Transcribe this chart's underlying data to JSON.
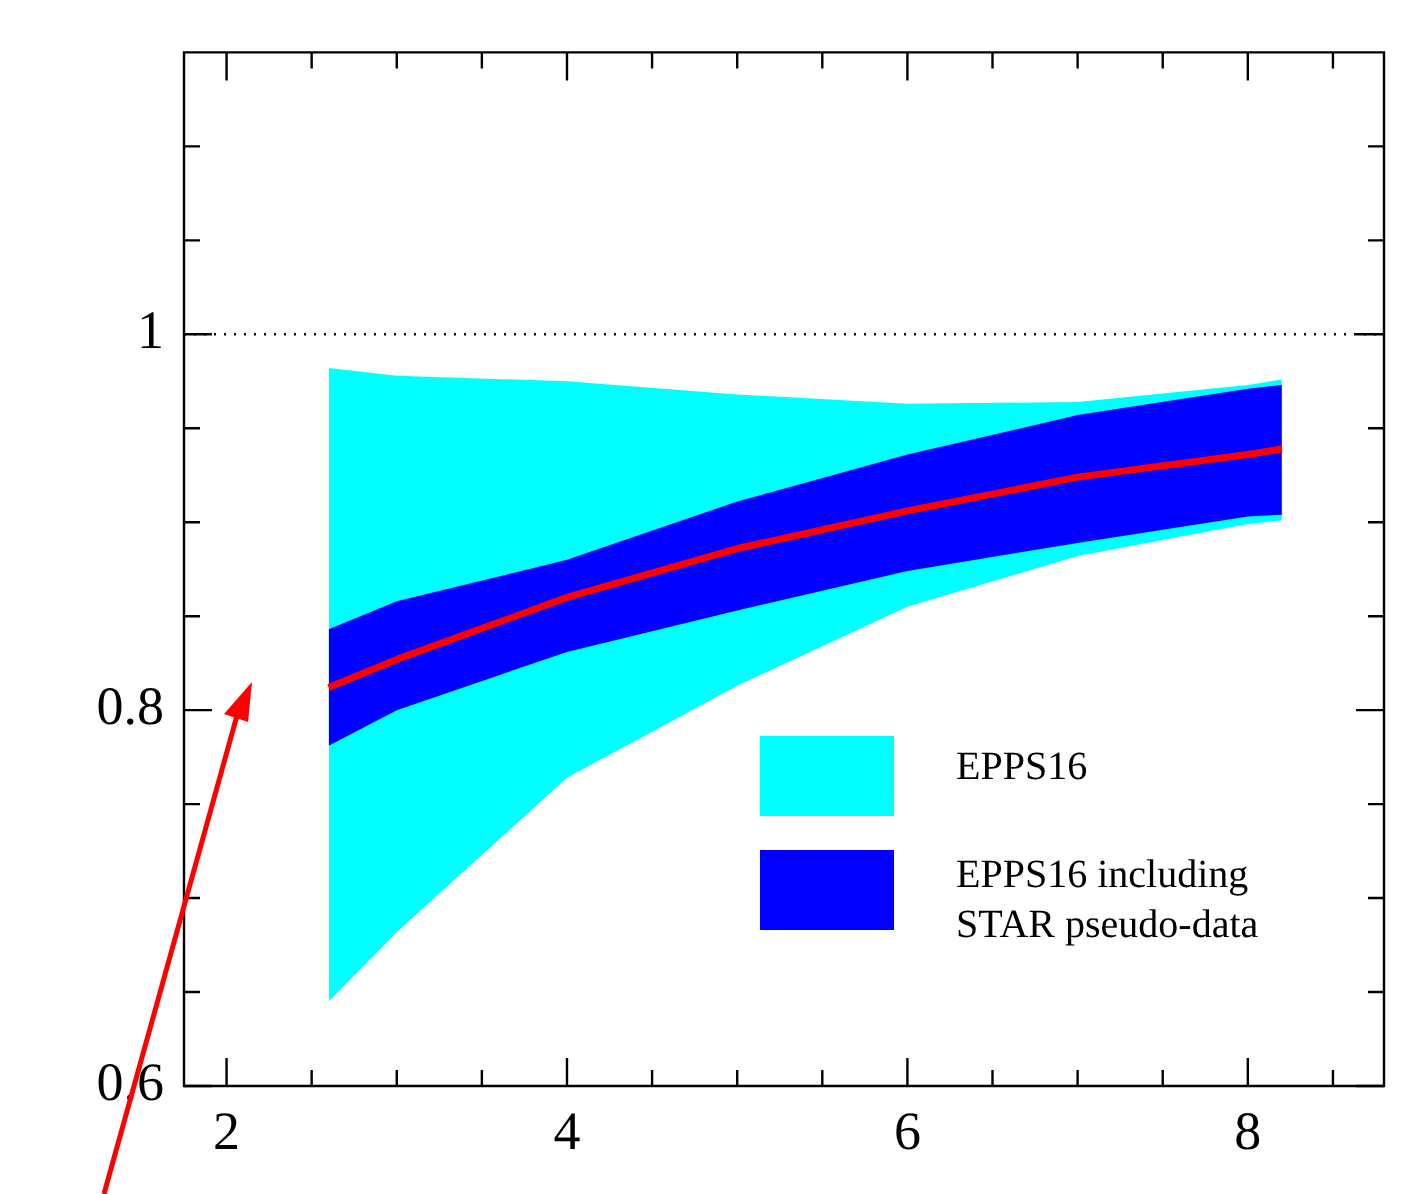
{
  "chart_data": {
    "type": "line",
    "x": [
      2.6,
      3,
      4,
      5,
      6,
      7,
      8,
      8.2
    ],
    "series": [
      {
        "name": "EPPS16",
        "color": "#00ffff",
        "values": [
          null,
          null,
          null,
          null,
          null,
          null,
          null,
          null
        ],
        "lower": [
          0.645,
          0.682,
          0.764,
          0.813,
          0.855,
          0.882,
          0.899,
          0.901
        ],
        "upper": [
          0.982,
          0.978,
          0.975,
          0.968,
          0.963,
          0.964,
          0.973,
          0.976
        ]
      },
      {
        "name": "EPPS16 including STAR pseudo-data",
        "color": "#0000ff",
        "values": [
          null,
          null,
          null,
          null,
          null,
          null,
          null,
          null
        ],
        "lower": [
          0.781,
          0.8,
          0.831,
          0.853,
          0.874,
          0.889,
          0.903,
          0.904
        ],
        "upper": [
          0.843,
          0.858,
          0.88,
          0.911,
          0.936,
          0.957,
          0.971,
          0.973
        ]
      },
      {
        "color": "#ff0000",
        "values": [
          0.812,
          0.827,
          0.86,
          0.886,
          0.906,
          0.924,
          0.936,
          0.939
        ]
      }
    ],
    "xlim": [
      1.75,
      8.8
    ],
    "xticks": [
      2,
      {
        "value": 2.5,
        "label": null
      },
      {
        "value": 3,
        "label": null
      },
      {
        "value": 3.5,
        "label": null
      },
      4,
      {
        "value": 4.5,
        "label": null
      },
      {
        "value": 5,
        "label": null
      },
      {
        "value": 5.5,
        "label": null
      },
      6,
      {
        "value": 6.5,
        "label": null
      },
      {
        "value": 7,
        "label": null
      },
      {
        "value": 7.5,
        "label": null
      },
      8,
      {
        "value": 8.5,
        "label": null
      }
    ],
    "ylim": [
      0.6,
      1.15
    ],
    "yticks": [
      0.6,
      {
        "value": 0.65,
        "label": null
      },
      {
        "value": 0.7,
        "label": null
      },
      {
        "value": 0.75,
        "label": null
      },
      0.8,
      {
        "value": 0.85,
        "label": null
      },
      {
        "value": 0.9,
        "label": null
      },
      {
        "value": 0.95,
        "label": null
      },
      1,
      {
        "value": 1.05,
        "label": null
      },
      {
        "value": 1.1,
        "label": null
      }
    ],
    "ref_lines": [
      {
        "axis": "y",
        "value": 1,
        "color": "#000000",
        "line_style": "dotted"
      }
    ],
    "legend": "bottom right",
    "marker": "none",
    "line_style": "solid",
    "grid": false
  }
}
